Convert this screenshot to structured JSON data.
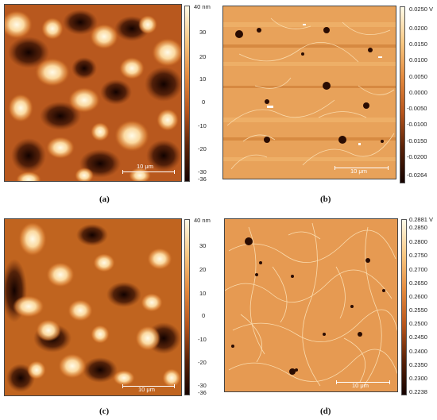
{
  "panels": [
    {
      "caption": "(a)",
      "scale_label": "10 μm",
      "colorbar_ticks": [
        "40 nm",
        "30",
        "20",
        "10",
        "0",
        "-10",
        "-20",
        "-30",
        "-36"
      ],
      "colormap": [
        "#fffbe8",
        "#f8c882",
        "#e48a3e",
        "#b8551c",
        "#5a2208",
        "#150300"
      ]
    },
    {
      "caption": "(b)",
      "scale_label": "10 μm",
      "colorbar_ticks": [
        "0.0250 V",
        "0.0200",
        "0.0150",
        "0.0100",
        "0.0050",
        "0.0000",
        "-0.0050",
        "-0.0100",
        "-0.0150",
        "-0.0200",
        "-0.0264"
      ],
      "colormap": [
        "#fffbe8",
        "#f8c882",
        "#e48a3e",
        "#b8551c",
        "#5a2208",
        "#150300"
      ]
    },
    {
      "caption": "(c)",
      "scale_label": "10 μm",
      "colorbar_ticks": [
        "40 nm",
        "30",
        "20",
        "10",
        "0",
        "-10",
        "-20",
        "-30",
        "-36"
      ],
      "colormap": [
        "#fffbe8",
        "#f8c882",
        "#e48a3e",
        "#b8551c",
        "#5a2208",
        "#150300"
      ]
    },
    {
      "caption": "(d)",
      "scale_label": "10 μm",
      "colorbar_ticks": [
        "0.2881 V",
        "0.2850",
        "0.2800",
        "0.2750",
        "0.2700",
        "0.2650",
        "0.2600",
        "0.2550",
        "0.2500",
        "0.2450",
        "0.2400",
        "0.2350",
        "0.2300",
        "0.2238"
      ],
      "colormap": [
        "#fffbe8",
        "#f8c882",
        "#e48a3e",
        "#b8551c",
        "#5a2208",
        "#150300"
      ]
    }
  ]
}
